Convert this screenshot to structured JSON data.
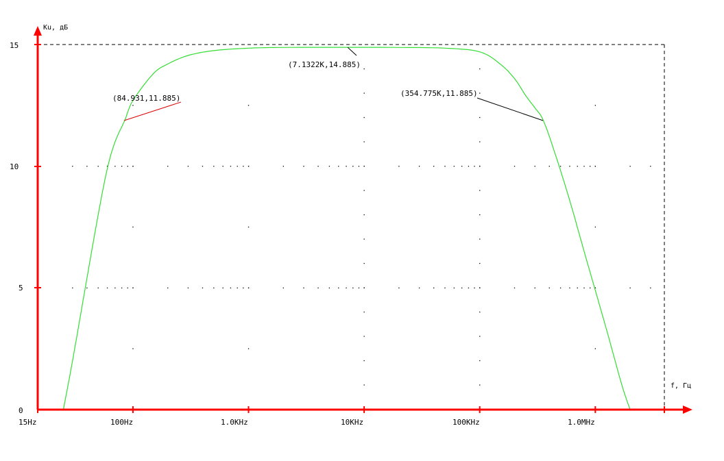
{
  "colors": {
    "axis": "#ff0000",
    "curve": "#33dd33",
    "grid_dots": "#000000",
    "dashed_frame": "#000000",
    "annotation_line_left": "#dd0000",
    "annotation_line_right": "#000000",
    "background": "#ffffff"
  },
  "chart_data": {
    "type": "line",
    "title": "",
    "xlabel": "f, Гц",
    "ylabel": "Кu, дБ",
    "x_scale": "log",
    "xlim": [
      15,
      4000000
    ],
    "ylim": [
      0,
      15
    ],
    "grid": "dotted",
    "x_ticks": [
      {
        "value": 15,
        "label": "15Hz"
      },
      {
        "value": 100,
        "label": "100Hz"
      },
      {
        "value": 1000,
        "label": "1.0KHz"
      },
      {
        "value": 10000,
        "label": "10KHz"
      },
      {
        "value": 100000,
        "label": "100KHz"
      },
      {
        "value": 1000000,
        "label": "1.0MHz"
      }
    ],
    "y_ticks": [
      {
        "value": 0,
        "label": "0"
      },
      {
        "value": 5,
        "label": "5"
      },
      {
        "value": 10,
        "label": "10"
      },
      {
        "value": 15,
        "label": "15"
      }
    ],
    "series": [
      {
        "color": "#33dd33",
        "points": [
          [
            25,
            0
          ],
          [
            30,
            2.0
          ],
          [
            40,
            5.4
          ],
          [
            50,
            8.0
          ],
          [
            60,
            9.9
          ],
          [
            70,
            11.0
          ],
          [
            84.931,
            11.885
          ],
          [
            100,
            12.7
          ],
          [
            150,
            13.8
          ],
          [
            200,
            14.2
          ],
          [
            300,
            14.55
          ],
          [
            500,
            14.75
          ],
          [
            1000,
            14.85
          ],
          [
            2000,
            14.88
          ],
          [
            7132.2,
            14.885
          ],
          [
            20000,
            14.88
          ],
          [
            50000,
            14.85
          ],
          [
            100000,
            14.7
          ],
          [
            150000,
            14.2
          ],
          [
            200000,
            13.6
          ],
          [
            250000,
            12.9
          ],
          [
            300000,
            12.4
          ],
          [
            354775,
            11.885
          ],
          [
            450000,
            10.5
          ],
          [
            600000,
            8.6
          ],
          [
            800000,
            6.5
          ],
          [
            1000000,
            4.9
          ],
          [
            1300000,
            3.0
          ],
          [
            1700000,
            1.0
          ],
          [
            2000000,
            0
          ]
        ]
      }
    ],
    "annotations": [
      {
        "text": "(84.931,11.885)",
        "x": 84.931,
        "y": 11.885
      },
      {
        "text": "(7.1322K,14.885)",
        "x": 7132.2,
        "y": 14.885
      },
      {
        "text": "(354.775K,11.885)",
        "x": 354775,
        "y": 11.885
      }
    ]
  }
}
